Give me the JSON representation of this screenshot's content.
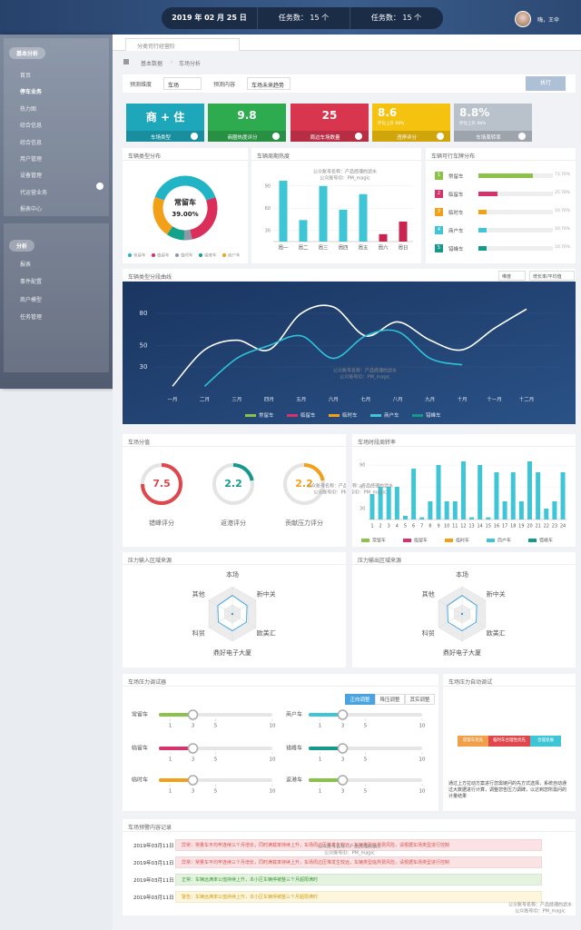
{
  "topbar": {
    "date": "2019 年 02 月 25 日",
    "tasks": [
      "任务数： 15 个",
      "任务数： 15 个"
    ],
    "user": "嗨，王伞"
  },
  "sidebar": {
    "groups": [
      {
        "title": "基本分析",
        "items": [
          {
            "label": "首页"
          },
          {
            "label": "停车业务",
            "active": true
          },
          {
            "label": "热力图"
          },
          {
            "label": "综合信息"
          },
          {
            "label": "综合信息"
          },
          {
            "label": "用户管理"
          },
          {
            "label": "设备管理"
          },
          {
            "label": "代运营业务"
          },
          {
            "label": "报表中心"
          }
        ]
      },
      {
        "title": "分析",
        "items": [
          {
            "label": "报表"
          },
          {
            "label": "事件配置"
          },
          {
            "label": "商户模型"
          },
          {
            "label": "任务管理"
          }
        ]
      }
    ]
  },
  "tab": "分类司行经营阶",
  "breadcrumb": [
    "基本数据",
    "车场分析"
  ],
  "filters": [
    {
      "label": "预测维度",
      "value": "车场"
    },
    {
      "label": "预测内容",
      "value": "车场未来趋势"
    }
  ],
  "button": "执行",
  "kpis": [
    {
      "value": "商 + 住",
      "label": "车场类型",
      "color": "#1ea7ba"
    },
    {
      "value": 9.8,
      "label": "商圈热度评分",
      "color": "#2eaa4f"
    },
    {
      "value": 25,
      "label": "周边车场数量",
      "color": "#d8354f"
    },
    {
      "value": 8.6,
      "sub": "环比上升 98%",
      "label": "违停评分",
      "color": "#f5c20f"
    },
    {
      "value": "8.8%",
      "sub": "环比上升 98%",
      "label": "车场周转率",
      "color": "#b9c1ca"
    }
  ],
  "watermark": [
    "公众账号名称：产品经理的滤水",
    "公众账号ID：PM_magic"
  ],
  "donut": {
    "title": "车辆类型分布",
    "categories": [
      "常留车",
      "临留车",
      "临时车",
      "错峰车",
      "商户车"
    ],
    "values": [
      39,
      27,
      4,
      9,
      21
    ],
    "colors": [
      "#21b3c6",
      "#d92f5a",
      "#8d99a6",
      "#13a38a",
      "#f2a017"
    ],
    "center_label": "常留车",
    "center_text": "39.00%"
  },
  "week": {
    "title": "车辆周期热度",
    "categories": [
      "周一",
      "周二",
      "周三",
      "周四",
      "周五",
      "周六",
      "周日"
    ],
    "values": [
      97,
      44,
      90,
      58,
      79,
      25,
      42
    ],
    "colors": [
      "#3ec5d6",
      "#3ec5d6",
      "#3ec5d6",
      "#3ec5d6",
      "#3ec5d6",
      "#c9234f",
      "#c9234f"
    ],
    "ylim": [
      15,
      100
    ],
    "yticks": [
      30,
      60,
      90
    ]
  },
  "plates": {
    "title": "车辆可行车牌分布",
    "items": [
      {
        "rank": 1,
        "name": "常留车",
        "value": 73.76,
        "value_label": "73.76%",
        "color": "#8bc34a"
      },
      {
        "rank": 2,
        "name": "临留车",
        "value": 25.78,
        "value_label": "25.78%",
        "color": "#d6336c"
      },
      {
        "rank": 3,
        "name": "临时车",
        "value": 10.76,
        "value_label": "10.76%",
        "color": "#f2a017"
      },
      {
        "rank": 4,
        "name": "商户车",
        "value": 10.76,
        "value_label": "10.76%",
        "color": "#3ec5d6"
      },
      {
        "rank": 5,
        "name": "错峰车",
        "value": 10.76,
        "value_label": "10.76%",
        "color": "#14998a"
      }
    ],
    "max": 100
  },
  "curve": {
    "title": "车辆类型分段曲线",
    "controls": [
      "维度",
      "增长率/平均值"
    ],
    "categories": [
      "一月",
      "二月",
      "三月",
      "四月",
      "五月",
      "六月",
      "七月",
      "八月",
      "九月",
      "十月",
      "十一月",
      "十二月"
    ],
    "ylim": [
      8,
      93
    ],
    "yticks": [
      30,
      50,
      80
    ],
    "lines": [
      {
        "color": "#ffffff",
        "values": [
          12,
          46,
          55,
          46,
          80,
          86,
          59,
          72,
          55,
          46,
          66,
          84
        ]
      },
      {
        "color": "#2fc3d8",
        "values": [
          null,
          12,
          38,
          50,
          59,
          38,
          59,
          63,
          38,
          32,
          null,
          null
        ]
      }
    ],
    "legend": [
      {
        "name": "常留车",
        "color": "#8bc34a"
      },
      {
        "name": "临留车",
        "color": "#d6336c"
      },
      {
        "name": "临时车",
        "color": "#f2a017"
      },
      {
        "name": "商户车",
        "color": "#3ec5d6"
      },
      {
        "name": "错峰车",
        "color": "#14998a"
      }
    ]
  },
  "scores": {
    "title": "车场分值",
    "max": 10,
    "items": [
      {
        "value": 7.5,
        "label": "错峰评分",
        "color": "#e0474c"
      },
      {
        "value": 2.2,
        "label": "返港评分",
        "color": "#14998a"
      },
      {
        "value": 2.2,
        "label": "贡献压力评分",
        "color": "#f2a017"
      }
    ]
  },
  "hourly": {
    "title": "车场时段周转率",
    "categories": [
      1,
      2,
      3,
      4,
      5,
      6,
      7,
      8,
      9,
      10,
      11,
      12,
      13,
      14,
      15,
      16,
      17,
      18,
      19,
      20,
      21,
      22,
      23,
      24
    ],
    "values": [
      50,
      60,
      60,
      60,
      20,
      85,
      18,
      40,
      90,
      40,
      40,
      95,
      18,
      90,
      18,
      80,
      40,
      80,
      40,
      95,
      80,
      30,
      40,
      80
    ],
    "color": "#3ec5d6",
    "ylim": [
      15,
      100
    ],
    "yticks": [
      30,
      60,
      90
    ],
    "legend": [
      {
        "name": "常留车",
        "color": "#8bc34a"
      },
      {
        "name": "临留车",
        "color": "#d6336c"
      },
      {
        "name": "临时车",
        "color": "#f2a017"
      },
      {
        "name": "商户车",
        "color": "#3ec5d6"
      },
      {
        "name": "错峰车",
        "color": "#14998a"
      }
    ]
  },
  "radars": [
    {
      "title": "压力输入区域来源",
      "axes": [
        "本场",
        "新中关",
        "欧美汇",
        "鼎好电子大厦",
        "科贸",
        "其他"
      ],
      "values": [
        68,
        62,
        60,
        62,
        60,
        62
      ],
      "max": 100,
      "color": "#3ba0e0"
    },
    {
      "title": "压力输出区域来源",
      "axes": [
        "本场",
        "新中关",
        "欧美汇",
        "鼎好电子大厦",
        "科贸",
        "其他"
      ],
      "values": [
        68,
        62,
        60,
        62,
        60,
        62
      ],
      "max": 100,
      "color": "#3ba0e0"
    }
  ],
  "sliders": {
    "title": "车场压力调试器",
    "tabs": [
      {
        "label": "正向调整",
        "active": true
      },
      {
        "label": "降压调整"
      },
      {
        "label": "其实调整"
      }
    ],
    "range": [
      0,
      10
    ],
    "ticks": [
      1,
      3,
      5,
      10
    ],
    "items": [
      {
        "name": "常留车",
        "value": 3,
        "color": "#8bc34a"
      },
      {
        "name": "商户车",
        "value": 3,
        "color": "#3ec5d6"
      },
      {
        "name": "临留车",
        "value": 3,
        "color": "#d6336c"
      },
      {
        "name": "错峰车",
        "value": 3,
        "color": "#14998a"
      },
      {
        "name": "临时车",
        "value": 3,
        "color": "#f2a017"
      },
      {
        "name": "返港车",
        "value": 3,
        "color": "#8bc34a"
      }
    ]
  },
  "auto": {
    "title": "车场压力自动调试",
    "chips": [
      {
        "label": "常留车优先",
        "color": "#f0a04b"
      },
      {
        "label": "临时车合理性优先",
        "color": "#e0474c"
      },
      {
        "label": "合理发展",
        "color": "#3ec5d6"
      }
    ],
    "text": "通过上方拉动方案进行您需链问的先方式选择，系统自动通过大数据进行计算，调整您告压力调碑，以达到您所需问的计量结果"
  },
  "alerts": {
    "title": "车场预警内容记录",
    "rows": [
      {
        "date": "2019年03月11日",
        "text": "异常：常量车平均牢连续三个月增长，同时满载率持续上升，车场周边压堆发生较远，车辆类型临界费风险，请根据车场类型进行控制",
        "bg": "#fbe3e5",
        "fg": "#d9534f"
      },
      {
        "date": "2019年03月11日",
        "text": "异常：常量车平均牢连续三个月增长，同时满载率持续上升，车场周边压堆发生较远，车辆类型临界费风险，请根据车场类型进行控制",
        "bg": "#fbe3e5",
        "fg": "#d9534f"
      },
      {
        "date": "2019年03月11日",
        "text": "正常：车辆远满率公值持续上升，本小区车辆停被整三个月超限满时",
        "bg": "#e3f3de",
        "fg": "#3c9a3c"
      },
      {
        "date": "2019年03月11日",
        "text": "警告：车辆远满率公值持续上升，本小区车辆停被整三个月超限满时",
        "bg": "#fdf6dc",
        "fg": "#d4a017"
      }
    ]
  }
}
